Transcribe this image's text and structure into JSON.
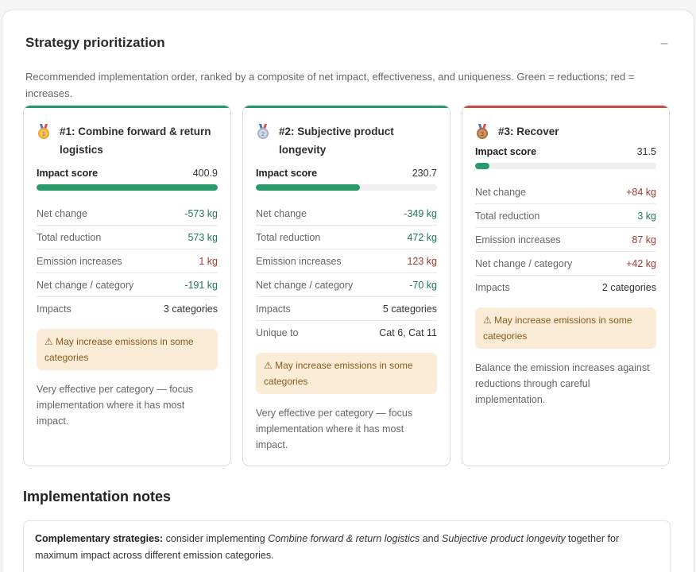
{
  "panel": {
    "title": "Strategy prioritization",
    "collapse_label": "–",
    "description": "Recommended implementation order, ranked by a composite of net impact, effectiveness, and uniqueness. Green = reductions; red = increases."
  },
  "colors": {
    "accent_green": "#2a9a6b",
    "accent_red": "#c0524b",
    "warn_bg": "#fbecd8"
  },
  "cards": [
    {
      "medal_icon": "gold-medal-icon",
      "title": "#1: Combine forward & return logistics",
      "score_label": "Impact score",
      "score": "400.9",
      "score_fraction": 1.0,
      "metrics": [
        {
          "label": "Net change",
          "value": "-573 kg",
          "tone": "green"
        },
        {
          "label": "Total reduction",
          "value": "573 kg",
          "tone": "green"
        },
        {
          "label": "Emission increases",
          "value": "1 kg",
          "tone": "red"
        },
        {
          "label": "Net change / category",
          "value": "-191 kg",
          "tone": "green"
        },
        {
          "label": "Impacts",
          "value": "3 categories",
          "tone": "plain"
        }
      ],
      "warning": "⚠ May increase emissions in some categories",
      "note": "Very effective per category — focus implementation where it has most impact."
    },
    {
      "medal_icon": "silver-medal-icon",
      "title": "#2: Subjective product longevity",
      "score_label": "Impact score",
      "score": "230.7",
      "score_fraction": 0.575,
      "metrics": [
        {
          "label": "Net change",
          "value": "-349 kg",
          "tone": "green"
        },
        {
          "label": "Total reduction",
          "value": "472 kg",
          "tone": "green"
        },
        {
          "label": "Emission increases",
          "value": "123 kg",
          "tone": "red"
        },
        {
          "label": "Net change / category",
          "value": "-70 kg",
          "tone": "green"
        },
        {
          "label": "Impacts",
          "value": "5 categories",
          "tone": "plain"
        },
        {
          "label": "Unique to",
          "value": "Cat 6, Cat 11",
          "tone": "plain"
        }
      ],
      "warning": "⚠ May increase emissions in some categories",
      "note": "Very effective per category — focus implementation where it has most impact."
    },
    {
      "medal_icon": "bronze-medal-icon",
      "title": "#3: Recover",
      "score_label": "Impact score",
      "score": "31.5",
      "score_fraction": 0.079,
      "metrics": [
        {
          "label": "Net change",
          "value": "+84 kg",
          "tone": "red"
        },
        {
          "label": "Total reduction",
          "value": "3 kg",
          "tone": "green"
        },
        {
          "label": "Emission increases",
          "value": "87 kg",
          "tone": "red"
        },
        {
          "label": "Net change / category",
          "value": "+42 kg",
          "tone": "red"
        },
        {
          "label": "Impacts",
          "value": "2 categories",
          "tone": "plain"
        }
      ],
      "warning": "⚠ May increase emissions in some categories",
      "note": "Balance the emission increases against reductions through careful implementation."
    }
  ],
  "implementation": {
    "title": "Implementation notes",
    "lead": "Complementary strategies:",
    "text_1": " consider implementing ",
    "strategy_a": "Combine forward & return logistics",
    "text_2": " and ",
    "strategy_b": "Subjective product longevity",
    "text_3": " together for maximum impact across different emission categories."
  }
}
